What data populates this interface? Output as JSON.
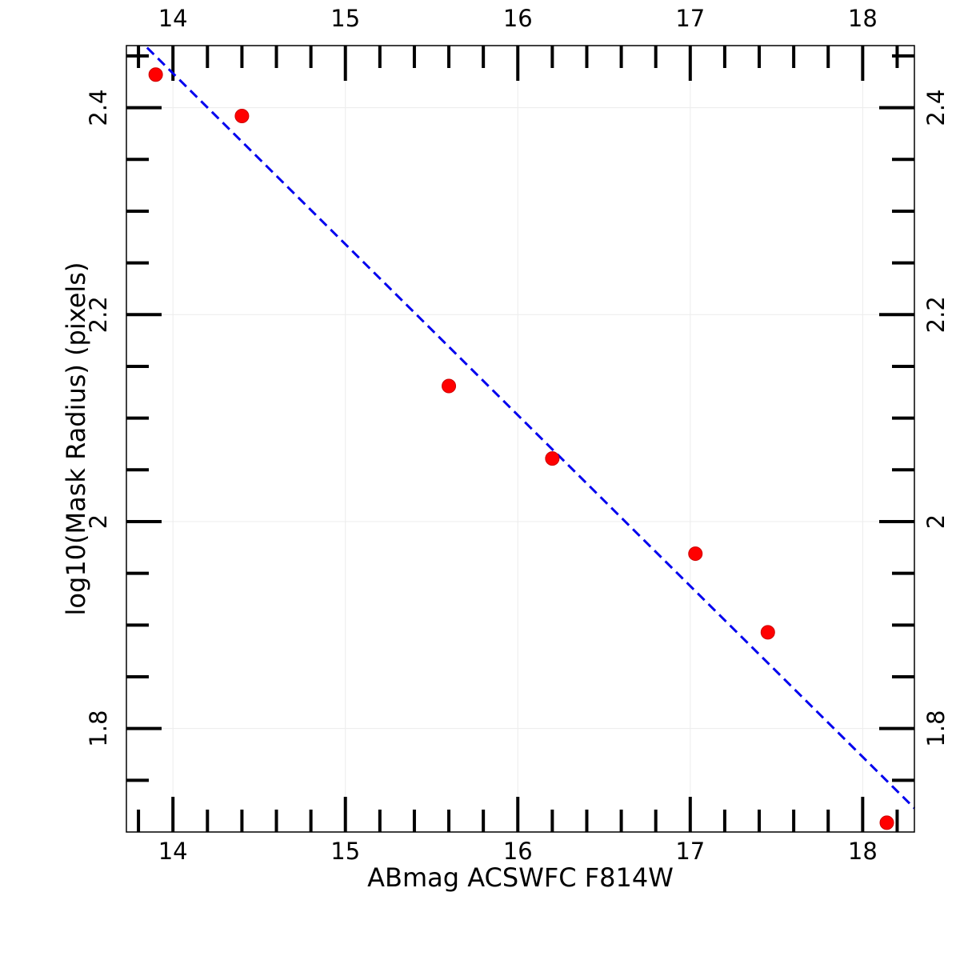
{
  "chart_data": {
    "type": "scatter",
    "title": "",
    "xlabel": "ABmag ACSWFC F814W",
    "ylabel": "log10(Mask Radius) (pixels)",
    "xlim": [
      13.73,
      18.3
    ],
    "ylim": [
      1.7,
      2.46
    ],
    "x_major_ticks": [
      14,
      15,
      16,
      17,
      18
    ],
    "x_minor_ticks": [
      13.8,
      14.2,
      14.4,
      14.6,
      14.8,
      15.2,
      15.4,
      15.6,
      15.8,
      16.2,
      16.4,
      16.6,
      16.8,
      17.2,
      17.4,
      17.6,
      17.8,
      18.2
    ],
    "y_major_ticks": [
      1.8,
      2.0,
      2.2,
      2.4
    ],
    "y_minor_ticks": [
      1.75,
      1.85,
      1.9,
      1.95,
      2.05,
      2.1,
      2.15,
      2.25,
      2.3,
      2.35,
      2.45
    ],
    "x_tick_labels": [
      "14",
      "15",
      "16",
      "17",
      "18"
    ],
    "y_tick_labels": [
      "1.8",
      "2",
      "2.2",
      "2.4"
    ],
    "grid": true,
    "series": [
      {
        "name": "points",
        "kind": "scatter",
        "color": "#ff0000",
        "x": [
          13.9,
          14.4,
          15.6,
          16.2,
          17.03,
          17.45,
          18.14
        ],
        "y": [
          2.432,
          2.392,
          2.131,
          2.061,
          1.969,
          1.893,
          1.709
        ]
      },
      {
        "name": "fit",
        "kind": "line",
        "style": "dashed",
        "color": "#0000ee",
        "x": [
          13.85,
          18.3
        ],
        "y": [
          2.458,
          1.723
        ]
      }
    ]
  }
}
